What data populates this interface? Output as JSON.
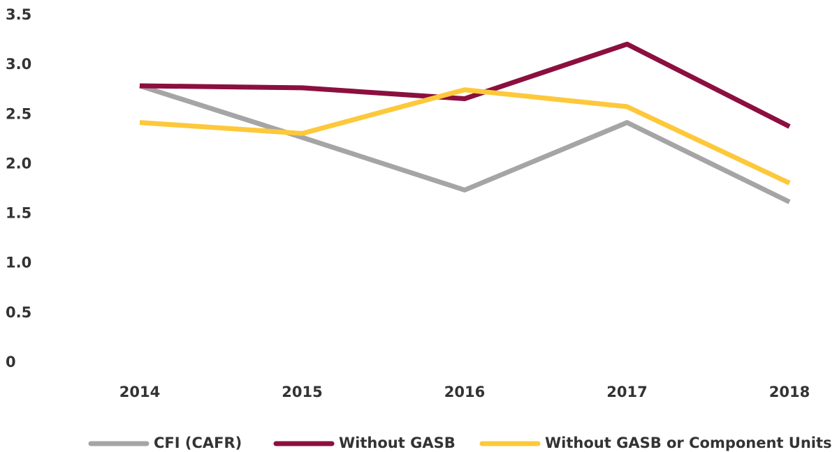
{
  "chart_data": {
    "type": "line",
    "categories": [
      "2014",
      "2015",
      "2016",
      "2017",
      "2018"
    ],
    "series": [
      {
        "name": "CFI (CAFR)",
        "color": "#a5a5a5",
        "values": [
          2.79,
          2.27,
          1.74,
          2.42,
          1.62
        ]
      },
      {
        "name": "Without GASB",
        "color": "#8b0f3f",
        "values": [
          2.79,
          2.77,
          2.66,
          3.21,
          2.38
        ]
      },
      {
        "name": "Without GASB or Component Units",
        "color": "#fdc83a",
        "values": [
          2.42,
          2.31,
          2.75,
          2.58,
          1.81
        ]
      }
    ],
    "ylim": [
      0,
      3.5
    ],
    "yticks": [
      0,
      0.5,
      {
        "value": 1,
        "label": "1.0"
      },
      1.5,
      {
        "value": 2,
        "label": "2.0"
      },
      2.5,
      {
        "value": 3,
        "label": "3.0"
      },
      3.5
    ],
    "grid": false,
    "legend": "bottom"
  }
}
